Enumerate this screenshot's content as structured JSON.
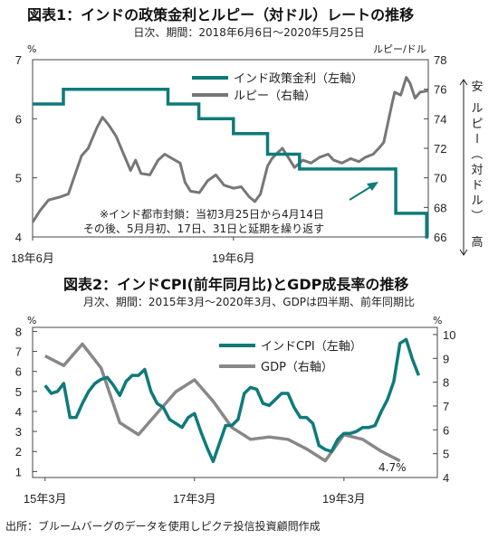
{
  "source": "出所：ブルームバーグのデータを使用しピクテ投信投資顧問作成",
  "chart_data": [
    {
      "type": "line",
      "title": "図表1：インドの政策金利とルピー（対ドル）レートの推移",
      "subtitle": "日次、期間：2018年6月6日～2020年5月25日",
      "left_unit": "%",
      "right_unit": "ルピー/ドル",
      "right_axis_label": "ルピー（対ドル）",
      "right_top_label": "安",
      "right_bottom_label": "高",
      "x_ticks": [
        "18年6月",
        "19年6月"
      ],
      "y_left_ticks": [
        "4",
        "5",
        "6",
        "7"
      ],
      "y_right_ticks": [
        "66",
        "68",
        "70",
        "72",
        "74",
        "76",
        "78"
      ],
      "ylim_left": [
        4,
        7
      ],
      "ylim_right": [
        66,
        78
      ],
      "legend_placement": "top-right",
      "annotation": [
        "※インド都市封鎖：当初3月25日から4月14日",
        "その後、5月月初、17日、31日と延期を繰り返す"
      ],
      "colors": {
        "policy_rate": "#0f7a7a",
        "rupee": "#777777"
      },
      "series": [
        {
          "name": "インド政策金利（左軸）",
          "axis": "left",
          "step": true,
          "x": [
            "2018-06-06",
            "2018-08-01",
            "2018-12-31",
            "2019-02-07",
            "2019-04-04",
            "2019-06-06",
            "2019-08-07",
            "2019-10-04",
            "2020-03-27",
            "2020-05-22",
            "2020-05-25"
          ],
          "values": [
            6.25,
            6.5,
            6.5,
            6.25,
            6.0,
            5.75,
            5.4,
            5.15,
            4.4,
            4.0,
            4.0
          ]
        },
        {
          "name": "ルピー（右軸）",
          "axis": "right",
          "x": [
            "2018-06-06",
            "2018-06-20",
            "2018-07-05",
            "2018-07-25",
            "2018-08-10",
            "2018-08-20",
            "2018-09-03",
            "2018-09-15",
            "2018-10-01",
            "2018-10-11",
            "2018-10-22",
            "2018-11-05",
            "2018-11-15",
            "2018-12-01",
            "2018-12-10",
            "2018-12-20",
            "2019-01-05",
            "2019-01-20",
            "2019-02-01",
            "2019-02-15",
            "2019-03-01",
            "2019-03-10",
            "2019-03-20",
            "2019-04-05",
            "2019-04-20",
            "2019-05-05",
            "2019-05-20",
            "2019-06-06",
            "2019-06-20",
            "2019-07-05",
            "2019-07-15",
            "2019-07-25",
            "2019-08-07",
            "2019-08-15",
            "2019-08-25",
            "2019-09-03",
            "2019-09-15",
            "2019-09-25",
            "2019-10-10",
            "2019-10-25",
            "2019-11-10",
            "2019-11-25",
            "2019-12-05",
            "2019-12-20",
            "2020-01-05",
            "2020-01-20",
            "2020-02-01",
            "2020-02-15",
            "2020-02-25",
            "2020-03-05",
            "2020-03-12",
            "2020-03-20",
            "2020-03-25",
            "2020-04-05",
            "2020-04-15",
            "2020-04-22",
            "2020-05-01",
            "2020-05-10",
            "2020-05-25"
          ],
          "values": [
            67.0,
            67.8,
            68.5,
            68.7,
            68.9,
            70.0,
            71.5,
            72.0,
            73.4,
            74.1,
            73.6,
            72.8,
            71.9,
            70.5,
            71.2,
            70.3,
            70.2,
            71.2,
            71.6,
            71.3,
            71.0,
            69.7,
            69.1,
            69.0,
            69.8,
            70.2,
            69.5,
            69.3,
            69.4,
            68.7,
            68.4,
            68.9,
            70.8,
            71.3,
            71.7,
            72.0,
            71.3,
            70.7,
            71.2,
            71.0,
            71.4,
            71.6,
            71.2,
            71.0,
            71.3,
            71.1,
            71.4,
            71.6,
            72.0,
            72.4,
            73.6,
            75.0,
            75.8,
            75.6,
            76.8,
            76.4,
            75.4,
            75.8,
            75.9
          ]
        }
      ]
    },
    {
      "type": "line",
      "title": "図表2：インドCPI(前年同月比)とGDP成長率の推移",
      "subtitle": "月次、期間：2015年3月～2020年3月、GDPは四半期、前年同期比",
      "left_unit": "%",
      "right_unit": "%",
      "x_ticks": [
        "15年3月",
        "17年3月",
        "19年3月"
      ],
      "y_left_ticks": [
        "1",
        "2",
        "3",
        "4",
        "5",
        "6",
        "7",
        "8"
      ],
      "y_right_ticks": [
        "4",
        "5",
        "6",
        "7",
        "8",
        "9",
        "10"
      ],
      "ylim_left": [
        1,
        8
      ],
      "ylim_right": [
        4,
        10
      ],
      "legend_placement": "top-right",
      "gdp_last_label": "4.7%",
      "colors": {
        "cpi": "#0f7a7a",
        "gdp": "#888888"
      },
      "series": [
        {
          "name": "インドCPI（左軸）",
          "axis": "left",
          "x": [
            "2015-03",
            "2015-04",
            "2015-05",
            "2015-06",
            "2015-07",
            "2015-08",
            "2015-09",
            "2015-10",
            "2015-11",
            "2015-12",
            "2016-01",
            "2016-02",
            "2016-03",
            "2016-04",
            "2016-05",
            "2016-06",
            "2016-07",
            "2016-08",
            "2016-09",
            "2016-10",
            "2016-11",
            "2016-12",
            "2017-01",
            "2017-02",
            "2017-03",
            "2017-04",
            "2017-05",
            "2017-06",
            "2017-07",
            "2017-08",
            "2017-09",
            "2017-10",
            "2017-11",
            "2017-12",
            "2018-01",
            "2018-02",
            "2018-03",
            "2018-04",
            "2018-05",
            "2018-06",
            "2018-07",
            "2018-08",
            "2018-09",
            "2018-10",
            "2018-11",
            "2018-12",
            "2019-01",
            "2019-02",
            "2019-03",
            "2019-04",
            "2019-05",
            "2019-06",
            "2019-07",
            "2019-08",
            "2019-09",
            "2019-10",
            "2019-11",
            "2019-12",
            "2020-01",
            "2020-02",
            "2020-03"
          ],
          "values": [
            5.3,
            4.9,
            5.0,
            5.4,
            3.7,
            3.7,
            4.4,
            5.0,
            5.4,
            5.6,
            5.7,
            5.3,
            4.8,
            5.5,
            5.8,
            5.8,
            6.1,
            5.0,
            4.4,
            4.2,
            3.6,
            3.4,
            3.2,
            3.7,
            3.9,
            3.0,
            2.2,
            1.5,
            2.4,
            3.3,
            3.3,
            3.6,
            4.9,
            5.2,
            5.1,
            4.4,
            4.3,
            4.6,
            4.9,
            4.9,
            4.2,
            3.7,
            3.7,
            3.4,
            2.3,
            2.1,
            2.0,
            2.6,
            2.9,
            2.9,
            3.0,
            3.2,
            3.2,
            3.3,
            4.0,
            4.6,
            5.5,
            7.4,
            7.6,
            6.6,
            5.8
          ]
        },
        {
          "name": "GDP（右軸）",
          "axis": "right",
          "x": [
            "2015-03",
            "2015-06",
            "2015-09",
            "2015-12",
            "2016-03",
            "2016-06",
            "2016-09",
            "2016-12",
            "2017-03",
            "2017-06",
            "2017-09",
            "2017-12",
            "2018-03",
            "2018-06",
            "2018-09",
            "2018-12",
            "2019-03",
            "2019-06",
            "2019-09",
            "2019-12"
          ],
          "values": [
            9.1,
            8.7,
            9.6,
            8.6,
            6.3,
            5.8,
            6.7,
            7.6,
            8.1,
            7.2,
            6.1,
            5.6,
            5.7,
            5.6,
            5.2,
            4.7,
            5.8,
            5.6,
            5.1,
            4.7
          ]
        }
      ]
    }
  ]
}
